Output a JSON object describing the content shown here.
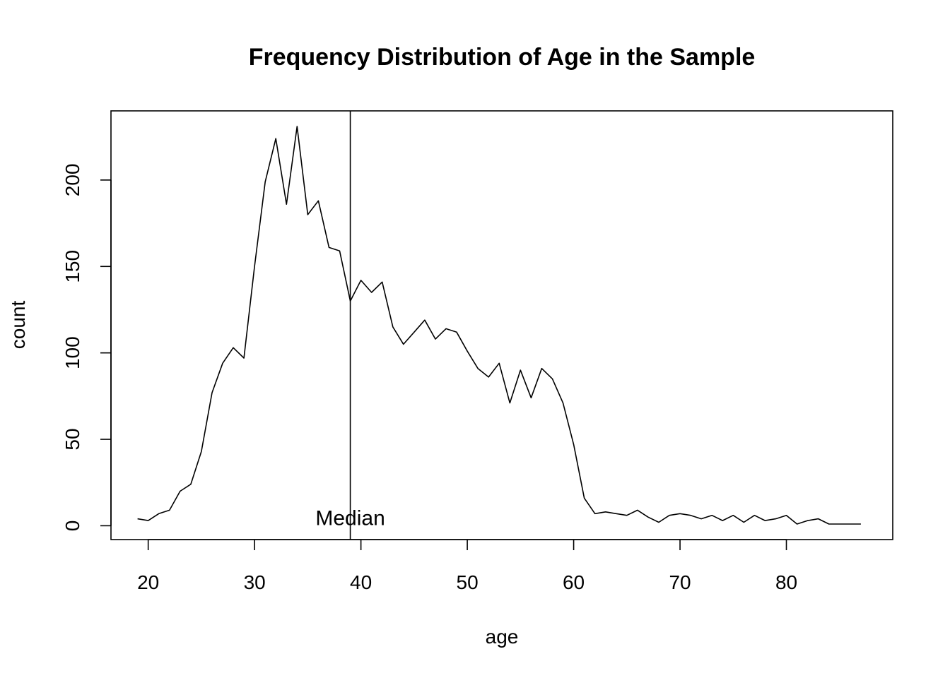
{
  "chart_data": {
    "type": "line",
    "title": "Frequency Distribution of Age in the Sample",
    "xlabel": "age",
    "ylabel": "count",
    "xlim": [
      16.5,
      90
    ],
    "ylim": [
      -8,
      240
    ],
    "x_ticks": [
      20,
      30,
      40,
      50,
      60,
      70,
      80
    ],
    "y_ticks": [
      0,
      50,
      100,
      150,
      200
    ],
    "grid": false,
    "legend": "none",
    "line_color": "#000000",
    "median": 39,
    "median_label": "Median",
    "series": [
      {
        "x": [
          19,
          20,
          21,
          22,
          23,
          24,
          25,
          26,
          27,
          28,
          29,
          30,
          31,
          32,
          33,
          34,
          35,
          36,
          37,
          38,
          39,
          40,
          41,
          42,
          43,
          44,
          45,
          46,
          47,
          48,
          49,
          50,
          51,
          52,
          53,
          54,
          55,
          56,
          57,
          58,
          59,
          60,
          61,
          62,
          63,
          64,
          65,
          66,
          67,
          68,
          69,
          70,
          71,
          72,
          73,
          74,
          75,
          76,
          77,
          78,
          79,
          80,
          81,
          82,
          83,
          84,
          85,
          86,
          87
        ],
        "y": [
          4,
          3,
          7,
          9,
          20,
          24,
          43,
          77,
          94,
          103,
          97,
          150,
          199,
          224,
          186,
          231,
          180,
          188,
          161,
          159,
          130,
          142,
          135,
          141,
          115,
          105,
          112,
          119,
          108,
          114,
          112,
          101,
          91,
          86,
          94,
          71,
          90,
          74,
          91,
          85,
          71,
          47,
          16,
          7,
          8,
          7,
          6,
          9,
          5,
          2,
          6,
          7,
          6,
          4,
          6,
          3,
          6,
          2,
          6,
          3,
          4,
          6,
          1,
          3,
          4,
          1,
          1,
          1,
          1
        ]
      }
    ]
  }
}
